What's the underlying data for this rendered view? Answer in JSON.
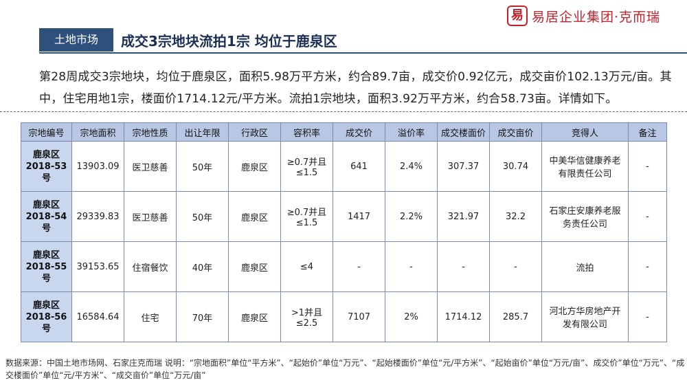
{
  "brand": {
    "seal": "易",
    "name": "易居企业集团·克而瑞"
  },
  "header": {
    "tag": "土地市场",
    "title": "成交3宗地块流拍1宗 均位于鹿泉区"
  },
  "summary": "第28周成交3宗地块，均位于鹿泉区，面积5.98万平方米，约合89.7亩，成交价0.92亿元，成交亩价102.13万元/亩。其中，住宅用地1宗，楼面价1714.12元/平方米。流拍1宗地块，面积3.92万平方米，约合58.73亩。详情如下。",
  "table": {
    "headers": [
      "宗地编号",
      "宗地面积",
      "宗地性质",
      "出让年限",
      "行政区",
      "容积率",
      "成交价",
      "溢价率",
      "成交楼面价",
      "成交亩价",
      "竞得人",
      "备注"
    ],
    "rows": [
      [
        "鹿泉区\n2018-53号",
        "13903.09",
        "医卫慈善",
        "50年",
        "鹿泉区",
        "≥0.7并且\n≤1.5",
        "641",
        "2.4%",
        "307.37",
        "30.74",
        "中美华信健康养老\n有限责任公司",
        "-"
      ],
      [
        "鹿泉区\n2018-54号",
        "29339.83",
        "医卫慈善",
        "50年",
        "鹿泉区",
        "≥0.7并且\n≤1.5",
        "1417",
        "2.2%",
        "321.97",
        "32.2",
        "石家庄安康养老服\n务责任公司",
        "-"
      ],
      [
        "鹿泉区\n2018-55号",
        "39153.65",
        "住宿餐饮",
        "40年",
        "鹿泉区",
        "≤4",
        "-",
        "-",
        "-",
        "-",
        "流拍",
        "-"
      ],
      [
        "鹿泉区\n2018-56号",
        "16584.64",
        "住宅",
        "70年",
        "鹿泉区",
        ">1并且\n≤2.5",
        "7107",
        "2%",
        "1714.12",
        "285.7",
        "河北方华房地产开\n发有限公司",
        "-"
      ]
    ]
  },
  "footnote": "数据来源：中国土地市场网、石家庄克而瑞 说明：“宗地面积”单位“平方米”、“起始价”单位“万元”、“起始楼面价”单位“元/平方米”、“起始亩价”单位“万元/亩”、成交价”单位“万元”、“成交楼面价”单位“元/平方米”、“成交亩价”单位“万元/亩”"
}
